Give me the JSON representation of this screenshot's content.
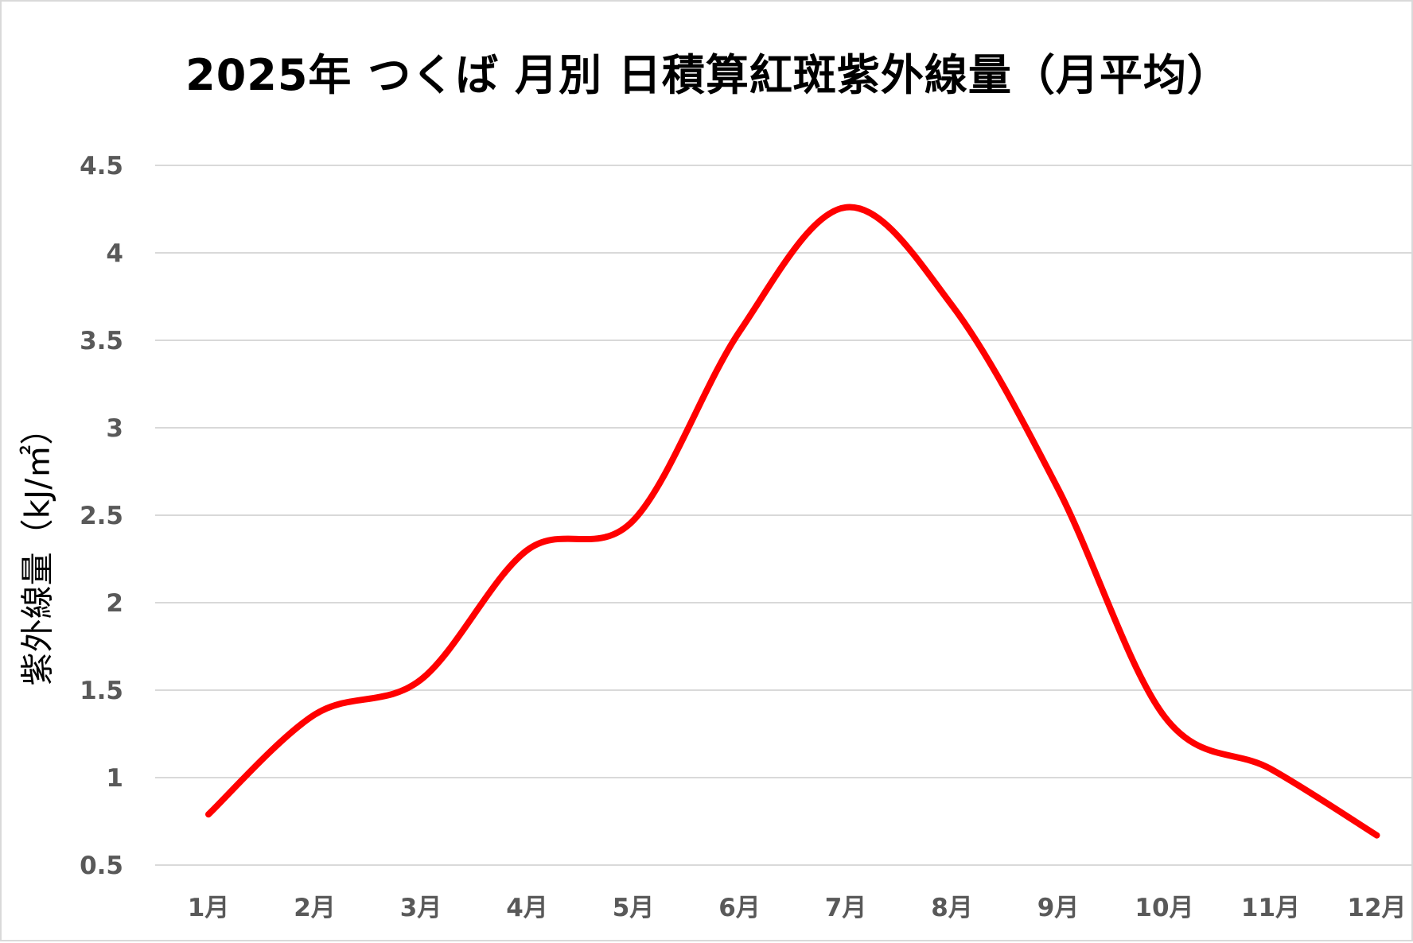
{
  "chart_data": {
    "type": "line",
    "title": "2025年 つくば 月別 日積算紅斑紫外線量（月平均）",
    "xlabel": "",
    "ylabel": "紫外線量（kJ/㎡）",
    "categories": [
      "1月",
      "2月",
      "3月",
      "4月",
      "5月",
      "6月",
      "7月",
      "8月",
      "9月",
      "10月",
      "11月",
      "12月"
    ],
    "series": [
      {
        "values": [
          0.79,
          1.36,
          1.56,
          2.3,
          2.47,
          3.55,
          4.26,
          3.7,
          2.65,
          1.35,
          1.05,
          0.67
        ]
      }
    ],
    "ylim": [
      0.5,
      4.5
    ],
    "yticks": [
      0.5,
      1,
      1.5,
      2,
      2.5,
      3,
      3.5,
      4,
      4.5
    ],
    "ytick_labels": [
      "0.5",
      "1",
      "1.5",
      "2",
      "2.5",
      "3",
      "3.5",
      "4",
      "4.5"
    ],
    "grid": true,
    "legend": "none",
    "line_color": "#ff0000",
    "smooth": true
  }
}
